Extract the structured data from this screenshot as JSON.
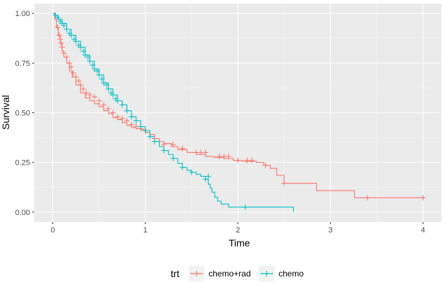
{
  "chart_data": {
    "type": "line",
    "subtype": "kaplan-meier step curves with censor marks",
    "xlabel": "Time",
    "ylabel": "Survival",
    "xlim": [
      -0.2,
      4.2
    ],
    "ylim": [
      -0.05,
      1.05
    ],
    "x_ticks": [
      0,
      1,
      2,
      3,
      4
    ],
    "y_ticks": [
      0.0,
      0.25,
      0.5,
      0.75,
      1.0
    ],
    "x_tick_labels": [
      "0",
      "1",
      "2",
      "3",
      "4"
    ],
    "y_tick_labels": [
      "0.00",
      "0.25",
      "0.50",
      "0.75",
      "1.00"
    ],
    "grid": true,
    "legend": {
      "title": "trt",
      "position": "bottom"
    },
    "panel_background": "#EBEBEB",
    "series": [
      {
        "name": "chemo+rad",
        "color": "#F8766D",
        "x": [
          0,
          0.02,
          0.04,
          0.06,
          0.08,
          0.1,
          0.12,
          0.15,
          0.18,
          0.21,
          0.25,
          0.3,
          0.35,
          0.4,
          0.45,
          0.5,
          0.55,
          0.6,
          0.65,
          0.7,
          0.75,
          0.8,
          0.85,
          0.9,
          0.95,
          1.0,
          1.05,
          1.1,
          1.15,
          1.2,
          1.28,
          1.35,
          1.45,
          1.55,
          1.65,
          1.75,
          1.85,
          1.95,
          2.05,
          2.2,
          2.28,
          2.35,
          2.42,
          2.5,
          2.55,
          2.85,
          3.0,
          3.26,
          3.4,
          4.0
        ],
        "y": [
          1.0,
          0.97,
          0.93,
          0.89,
          0.85,
          0.81,
          0.78,
          0.75,
          0.71,
          0.68,
          0.64,
          0.6,
          0.575,
          0.56,
          0.545,
          0.53,
          0.51,
          0.495,
          0.475,
          0.465,
          0.45,
          0.435,
          0.425,
          0.42,
          0.415,
          0.4,
          0.39,
          0.37,
          0.355,
          0.345,
          0.33,
          0.315,
          0.3,
          0.29,
          0.28,
          0.275,
          0.27,
          0.26,
          0.255,
          0.25,
          0.235,
          0.22,
          0.185,
          0.145,
          0.145,
          0.108,
          0.108,
          0.072,
          0.072,
          0.072
        ],
        "censored": [
          [
            0.05,
            0.93
          ],
          [
            0.07,
            0.89
          ],
          [
            0.08,
            0.87
          ],
          [
            0.09,
            0.85
          ],
          [
            0.1,
            0.83
          ],
          [
            0.12,
            0.8
          ],
          [
            0.15,
            0.78
          ],
          [
            0.18,
            0.75
          ],
          [
            0.2,
            0.73
          ],
          [
            0.22,
            0.7
          ],
          [
            0.25,
            0.68
          ],
          [
            0.28,
            0.66
          ],
          [
            0.3,
            0.64
          ],
          [
            0.33,
            0.62
          ],
          [
            0.36,
            0.6
          ],
          [
            0.4,
            0.59
          ],
          [
            0.45,
            0.58
          ],
          [
            0.5,
            0.56
          ],
          [
            0.55,
            0.54
          ],
          [
            0.6,
            0.52
          ],
          [
            0.65,
            0.5
          ],
          [
            0.7,
            0.48
          ],
          [
            0.75,
            0.47
          ],
          [
            0.8,
            0.46
          ],
          [
            0.85,
            0.44
          ],
          [
            0.9,
            0.43
          ],
          [
            0.95,
            0.42
          ],
          [
            1.0,
            0.41
          ],
          [
            1.1,
            0.37
          ],
          [
            1.2,
            0.34
          ],
          [
            1.3,
            0.34
          ],
          [
            1.4,
            0.32
          ],
          [
            1.55,
            0.3
          ],
          [
            1.6,
            0.3
          ],
          [
            1.65,
            0.3
          ],
          [
            1.8,
            0.28
          ],
          [
            1.85,
            0.28
          ],
          [
            1.9,
            0.28
          ],
          [
            2.0,
            0.26
          ],
          [
            2.1,
            0.26
          ],
          [
            2.15,
            0.26
          ],
          [
            2.3,
            0.235
          ],
          [
            2.5,
            0.145
          ],
          [
            3.4,
            0.072
          ],
          [
            4.0,
            0.072
          ]
        ]
      },
      {
        "name": "chemo",
        "color": "#00BFC4",
        "x": [
          0,
          0.03,
          0.06,
          0.1,
          0.15,
          0.2,
          0.25,
          0.3,
          0.35,
          0.4,
          0.45,
          0.5,
          0.55,
          0.6,
          0.65,
          0.7,
          0.75,
          0.8,
          0.85,
          0.9,
          0.95,
          1.0,
          1.05,
          1.1,
          1.15,
          1.2,
          1.25,
          1.3,
          1.35,
          1.4,
          1.45,
          1.5,
          1.55,
          1.6,
          1.65,
          1.68,
          1.7,
          1.72,
          1.75,
          1.78,
          1.82,
          1.9,
          2.05,
          2.6
        ],
        "y": [
          1.0,
          0.99,
          0.97,
          0.95,
          0.92,
          0.89,
          0.86,
          0.83,
          0.79,
          0.76,
          0.72,
          0.69,
          0.65,
          0.62,
          0.59,
          0.56,
          0.54,
          0.51,
          0.48,
          0.46,
          0.43,
          0.41,
          0.38,
          0.355,
          0.33,
          0.31,
          0.29,
          0.27,
          0.245,
          0.225,
          0.21,
          0.2,
          0.19,
          0.18,
          0.165,
          0.14,
          0.12,
          0.1,
          0.075,
          0.055,
          0.04,
          0.025,
          0.025,
          0.0
        ],
        "censored": [
          [
            0.03,
            0.99
          ],
          [
            0.05,
            0.98
          ],
          [
            0.08,
            0.96
          ],
          [
            0.1,
            0.95
          ],
          [
            0.12,
            0.94
          ],
          [
            0.15,
            0.92
          ],
          [
            0.18,
            0.9
          ],
          [
            0.2,
            0.89
          ],
          [
            0.23,
            0.87
          ],
          [
            0.25,
            0.86
          ],
          [
            0.28,
            0.84
          ],
          [
            0.3,
            0.83
          ],
          [
            0.33,
            0.81
          ],
          [
            0.35,
            0.79
          ],
          [
            0.38,
            0.78
          ],
          [
            0.4,
            0.76
          ],
          [
            0.43,
            0.74
          ],
          [
            0.45,
            0.72
          ],
          [
            0.48,
            0.71
          ],
          [
            0.5,
            0.69
          ],
          [
            0.53,
            0.67
          ],
          [
            0.55,
            0.65
          ],
          [
            0.58,
            0.64
          ],
          [
            0.6,
            0.62
          ],
          [
            0.63,
            0.6
          ],
          [
            0.65,
            0.59
          ],
          [
            0.68,
            0.57
          ],
          [
            0.7,
            0.56
          ],
          [
            0.75,
            0.54
          ],
          [
            0.8,
            0.51
          ],
          [
            0.85,
            0.48
          ],
          [
            0.9,
            0.46
          ],
          [
            0.95,
            0.43
          ],
          [
            1.0,
            0.41
          ],
          [
            1.05,
            0.38
          ],
          [
            1.1,
            0.355
          ],
          [
            1.2,
            0.31
          ],
          [
            1.3,
            0.27
          ],
          [
            1.4,
            0.225
          ],
          [
            1.5,
            0.2
          ],
          [
            1.65,
            0.165
          ],
          [
            1.68,
            0.18
          ],
          [
            2.08,
            0.025
          ]
        ]
      }
    ]
  }
}
